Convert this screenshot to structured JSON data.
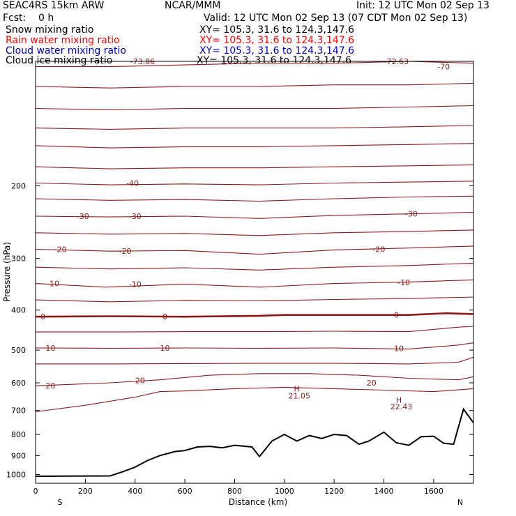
{
  "header": {
    "model": "SEAC4RS 15km ARW",
    "source": "NCAR/MMM",
    "init": "Init: 12 UTC Mon 02 Sep 13",
    "fcst": "Fcst:    0 h",
    "valid": "Valid: 12 UTC Mon 02 Sep 13 (07 CDT Mon 02 Sep 13)"
  },
  "fields": [
    {
      "name": "Snow mixing ratio",
      "xy": "XY= 105.3, 31.6 to 124.3,147.6",
      "color": "#000000"
    },
    {
      "name": "Rain water mixing ratio",
      "xy": "XY= 105.3, 31.6 to 124.3,147.6",
      "color": "#ff0000"
    },
    {
      "name": "Cloud water mixing ratio",
      "xy": "XY= 105.3, 31.6 to 124.3,147.6",
      "color": "#0000cc"
    },
    {
      "name": "Cloud ice mixing ratio",
      "xy": "XY= 105.3, 31.6 to 124.3,147.6",
      "color": "#000000"
    }
  ],
  "chart_data": {
    "type": "line",
    "xlabel": "Distance (km)",
    "ylabel": "Pressure (hPa)",
    "xlim": [
      0,
      1760
    ],
    "ylim": [
      1050,
      100
    ],
    "y_scale": "log",
    "x_ticks": [
      0,
      200,
      400,
      600,
      800,
      1000,
      1200,
      1400,
      1600
    ],
    "y_ticks": [
      200,
      300,
      400,
      500,
      600,
      700,
      800,
      900,
      1000
    ],
    "x_end_labels": {
      "left": "S",
      "right": "N"
    },
    "contour_color": "#8b1a1a",
    "terrain_color": "#000000",
    "temperature_contours": [
      {
        "value": -70,
        "levels": [
          [
            0,
            103
          ],
          [
            300,
            103
          ],
          [
            600,
            102
          ],
          [
            900,
            101
          ],
          [
            1200,
            101
          ],
          [
            1500,
            100
          ],
          [
            1760,
            101
          ]
        ]
      },
      {
        "value": -65,
        "levels": [
          [
            0,
            115
          ],
          [
            300,
            116
          ],
          [
            600,
            115
          ],
          [
            900,
            115
          ],
          [
            1200,
            114
          ],
          [
            1500,
            114
          ],
          [
            1760,
            113
          ]
        ]
      },
      {
        "value": -60,
        "levels": [
          [
            0,
            130
          ],
          [
            300,
            131
          ],
          [
            600,
            130
          ],
          [
            900,
            130
          ],
          [
            1200,
            130
          ],
          [
            1500,
            129
          ],
          [
            1760,
            128
          ]
        ]
      },
      {
        "value": -55,
        "levels": [
          [
            0,
            145
          ],
          [
            300,
            146
          ],
          [
            600,
            145
          ],
          [
            900,
            145
          ],
          [
            1200,
            145
          ],
          [
            1500,
            144
          ],
          [
            1760,
            143
          ]
        ]
      },
      {
        "value": -50,
        "levels": [
          [
            0,
            160
          ],
          [
            300,
            162
          ],
          [
            600,
            161
          ],
          [
            900,
            161
          ],
          [
            1200,
            160
          ],
          [
            1500,
            159
          ],
          [
            1760,
            158
          ]
        ]
      },
      {
        "value": -45,
        "levels": [
          [
            0,
            180
          ],
          [
            300,
            182
          ],
          [
            600,
            181
          ],
          [
            900,
            181
          ],
          [
            1200,
            180
          ],
          [
            1500,
            179
          ],
          [
            1760,
            178
          ]
        ]
      },
      {
        "value": -40,
        "levels": [
          [
            0,
            197
          ],
          [
            300,
            199
          ],
          [
            600,
            198
          ],
          [
            900,
            199
          ],
          [
            1200,
            197
          ],
          [
            1500,
            196
          ],
          [
            1760,
            195
          ]
        ]
      },
      {
        "value": -35,
        "levels": [
          [
            0,
            215
          ],
          [
            300,
            217
          ],
          [
            600,
            216
          ],
          [
            900,
            218
          ],
          [
            1200,
            215
          ],
          [
            1500,
            213
          ],
          [
            1760,
            212
          ]
        ]
      },
      {
        "value": -30,
        "levels": [
          [
            0,
            237
          ],
          [
            300,
            238
          ],
          [
            600,
            237
          ],
          [
            900,
            240
          ],
          [
            1200,
            236
          ],
          [
            1500,
            234
          ],
          [
            1760,
            232
          ]
        ]
      },
      {
        "value": -25,
        "levels": [
          [
            0,
            260
          ],
          [
            300,
            262
          ],
          [
            600,
            261
          ],
          [
            900,
            264
          ],
          [
            1200,
            260
          ],
          [
            1500,
            258
          ],
          [
            1760,
            256
          ]
        ]
      },
      {
        "value": -20,
        "levels": [
          [
            0,
            285
          ],
          [
            300,
            288
          ],
          [
            600,
            287
          ],
          [
            900,
            293
          ],
          [
            1200,
            286
          ],
          [
            1500,
            283
          ],
          [
            1760,
            280
          ]
        ]
      },
      {
        "value": -15,
        "levels": [
          [
            0,
            315
          ],
          [
            300,
            318
          ],
          [
            600,
            316
          ],
          [
            900,
            320
          ],
          [
            1200,
            315
          ],
          [
            1500,
            312
          ],
          [
            1760,
            308
          ]
        ]
      },
      {
        "value": -10,
        "levels": [
          [
            0,
            345
          ],
          [
            280,
            352
          ],
          [
            600,
            346
          ],
          [
            900,
            352
          ],
          [
            1200,
            345
          ],
          [
            1500,
            342
          ],
          [
            1760,
            338
          ]
        ]
      },
      {
        "value": -5,
        "levels": [
          [
            0,
            378
          ],
          [
            300,
            382
          ],
          [
            600,
            379
          ],
          [
            900,
            380
          ],
          [
            1200,
            377
          ],
          [
            1500,
            375
          ],
          [
            1760,
            372
          ]
        ]
      },
      {
        "value": 0,
        "levels": [
          [
            0,
            415
          ],
          [
            300,
            414
          ],
          [
            600,
            415
          ],
          [
            900,
            413
          ],
          [
            1000,
            411
          ],
          [
            1200,
            411
          ],
          [
            1500,
            411
          ],
          [
            1650,
            407
          ],
          [
            1760,
            409
          ]
        ]
      },
      {
        "value": 5,
        "levels": [
          [
            0,
            452
          ],
          [
            300,
            452
          ],
          [
            600,
            451
          ],
          [
            900,
            451
          ],
          [
            1200,
            450
          ],
          [
            1500,
            451
          ],
          [
            1700,
            440
          ],
          [
            1760,
            438
          ]
        ]
      },
      {
        "value": 10,
        "levels": [
          [
            0,
            494
          ],
          [
            300,
            495
          ],
          [
            600,
            494
          ],
          [
            900,
            495
          ],
          [
            1200,
            494
          ],
          [
            1500,
            497
          ],
          [
            1700,
            486
          ],
          [
            1760,
            480
          ]
        ]
      },
      {
        "value": 15,
        "levels": [
          [
            0,
            540
          ],
          [
            300,
            540
          ],
          [
            600,
            539
          ],
          [
            900,
            538
          ],
          [
            1200,
            538
          ],
          [
            1500,
            540
          ],
          [
            1700,
            535
          ],
          [
            1760,
            520
          ]
        ]
      },
      {
        "value": 20,
        "levels": [
          [
            0,
            610
          ],
          [
            300,
            600
          ],
          [
            500,
            590
          ],
          [
            700,
            575
          ],
          [
            900,
            570
          ],
          [
            1100,
            570
          ],
          [
            1300,
            575
          ],
          [
            1500,
            585
          ],
          [
            1700,
            590
          ],
          [
            1760,
            580
          ]
        ]
      },
      {
        "value": 25,
        "levels": [
          [
            0,
            705
          ],
          [
            200,
            680
          ],
          [
            400,
            650
          ],
          [
            500,
            630
          ],
          [
            600,
            628
          ],
          [
            800,
            620
          ],
          [
            1000,
            615
          ],
          [
            1200,
            620
          ],
          [
            1400,
            625
          ],
          [
            1600,
            630
          ],
          [
            1760,
            620
          ]
        ]
      }
    ],
    "extrema": [
      {
        "label": "-73.86",
        "x": 430,
        "p": 100
      },
      {
        "label": "-72.63",
        "x": 1450,
        "p": 100
      },
      {
        "label": "H",
        "x": 1050,
        "p": 620
      },
      {
        "label": "21.05",
        "x": 1060,
        "p": 645
      },
      {
        "label": "H",
        "x": 1460,
        "p": 660
      },
      {
        "label": "22.43",
        "x": 1470,
        "p": 685
      }
    ],
    "contour_labels": [
      {
        "text": "-70",
        "x": 1640,
        "p": 103
      },
      {
        "text": "-40",
        "x": 390,
        "p": 197
      },
      {
        "text": "-30",
        "x": 190,
        "p": 237
      },
      {
        "text": "-30",
        "x": 400,
        "p": 237
      },
      {
        "text": "-30",
        "x": 1510,
        "p": 234
      },
      {
        "text": "-20",
        "x": 100,
        "p": 285
      },
      {
        "text": "-20",
        "x": 360,
        "p": 288
      },
      {
        "text": "-20",
        "x": 1380,
        "p": 285
      },
      {
        "text": "-10",
        "x": 70,
        "p": 345
      },
      {
        "text": "-10",
        "x": 400,
        "p": 346
      },
      {
        "text": "-10",
        "x": 1480,
        "p": 343
      },
      {
        "text": "0",
        "x": 30,
        "p": 415
      },
      {
        "text": "0",
        "x": 520,
        "p": 415
      },
      {
        "text": "0",
        "x": 1450,
        "p": 411
      },
      {
        "text": "10",
        "x": 60,
        "p": 494
      },
      {
        "text": "10",
        "x": 520,
        "p": 494
      },
      {
        "text": "10",
        "x": 1460,
        "p": 495
      },
      {
        "text": "20",
        "x": 420,
        "p": 592
      },
      {
        "text": "20",
        "x": 1350,
        "p": 600
      },
      {
        "text": "20",
        "x": 60,
        "p": 609
      }
    ],
    "terrain": [
      [
        0,
        1010
      ],
      [
        300,
        1008
      ],
      [
        350,
        985
      ],
      [
        400,
        960
      ],
      [
        450,
        925
      ],
      [
        500,
        900
      ],
      [
        560,
        880
      ],
      [
        600,
        875
      ],
      [
        650,
        858
      ],
      [
        700,
        855
      ],
      [
        750,
        862
      ],
      [
        800,
        850
      ],
      [
        870,
        858
      ],
      [
        900,
        905
      ],
      [
        950,
        830
      ],
      [
        1000,
        800
      ],
      [
        1050,
        830
      ],
      [
        1100,
        805
      ],
      [
        1150,
        818
      ],
      [
        1200,
        800
      ],
      [
        1250,
        805
      ],
      [
        1300,
        845
      ],
      [
        1340,
        830
      ],
      [
        1400,
        790
      ],
      [
        1450,
        838
      ],
      [
        1500,
        850
      ],
      [
        1550,
        810
      ],
      [
        1600,
        808
      ],
      [
        1640,
        840
      ],
      [
        1680,
        845
      ],
      [
        1720,
        695
      ],
      [
        1760,
        750
      ]
    ]
  }
}
